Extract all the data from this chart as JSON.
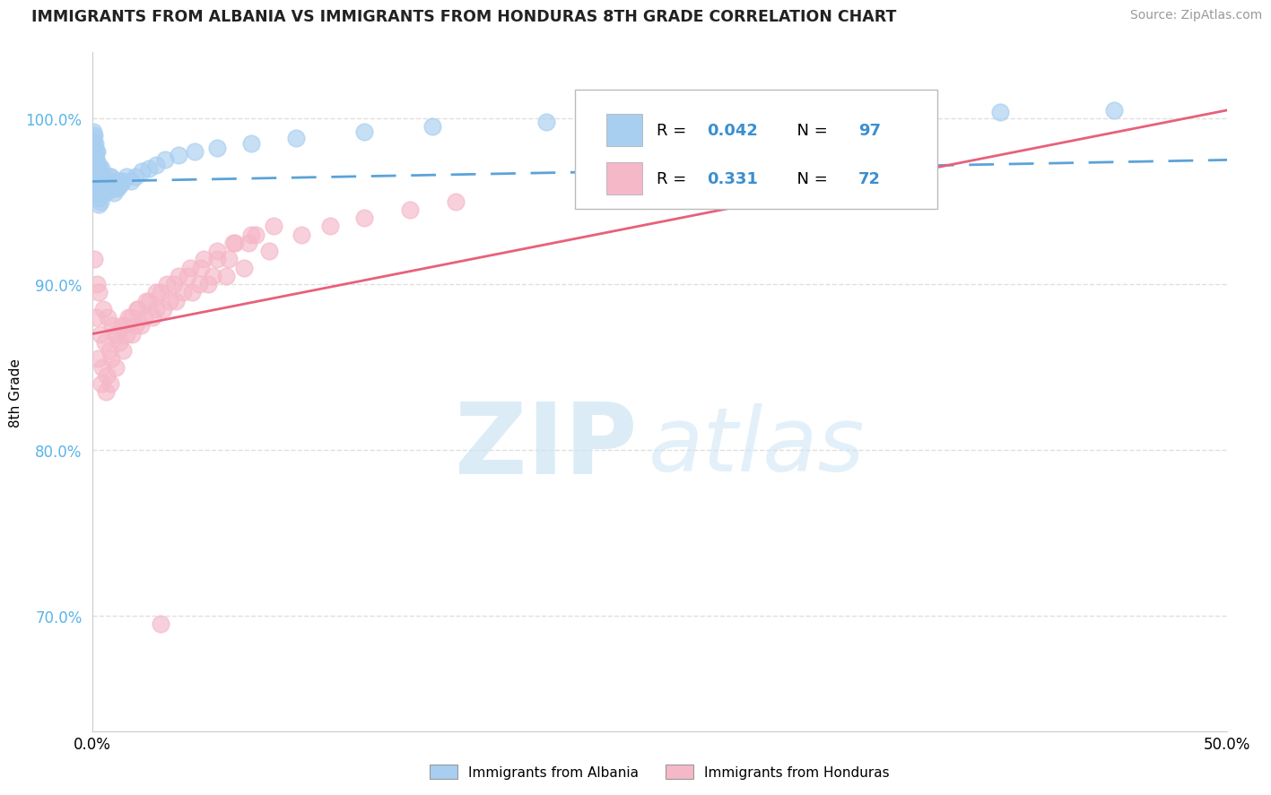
{
  "title": "IMMIGRANTS FROM ALBANIA VS IMMIGRANTS FROM HONDURAS 8TH GRADE CORRELATION CHART",
  "source": "Source: ZipAtlas.com",
  "ylabel": "8th Grade",
  "xlim": [
    0.0,
    50.0
  ],
  "ylim": [
    63.0,
    104.0
  ],
  "albania_color": "#a8cef0",
  "honduras_color": "#f5b8c8",
  "albania_line_color": "#5ba3d9",
  "honduras_line_color": "#e8607a",
  "albania_R": 0.042,
  "albania_N": 97,
  "honduras_R": 0.331,
  "honduras_N": 72,
  "legend_albania_label": "Immigrants from Albania",
  "legend_honduras_label": "Immigrants from Honduras",
  "watermark_zip": "ZIP",
  "watermark_atlas": "atlas",
  "background_color": "#ffffff",
  "grid_color": "#e0e0e0",
  "yticks": [
    70.0,
    80.0,
    90.0,
    100.0
  ],
  "xticks": [
    0.0,
    50.0
  ],
  "albania_scatter_x": [
    0.05,
    0.05,
    0.08,
    0.08,
    0.1,
    0.1,
    0.12,
    0.12,
    0.15,
    0.15,
    0.18,
    0.18,
    0.2,
    0.2,
    0.22,
    0.22,
    0.25,
    0.25,
    0.28,
    0.28,
    0.3,
    0.3,
    0.35,
    0.35,
    0.4,
    0.4,
    0.45,
    0.5,
    0.55,
    0.6,
    0.65,
    0.7,
    0.75,
    0.8,
    0.85,
    0.9,
    0.95,
    1.0,
    1.1,
    1.2,
    0.05,
    0.07,
    0.09,
    0.11,
    0.13,
    0.16,
    0.19,
    0.23,
    0.27,
    0.32,
    0.37,
    0.42,
    0.48,
    0.53,
    0.58,
    0.63,
    0.68,
    0.73,
    0.78,
    0.83,
    0.88,
    0.93,
    0.98,
    1.05,
    1.15,
    1.25,
    1.35,
    1.5,
    1.7,
    1.9,
    2.2,
    2.5,
    2.8,
    3.2,
    3.8,
    4.5,
    5.5,
    7.0,
    9.0,
    12.0,
    15.0,
    20.0,
    25.0,
    30.0,
    35.0,
    40.0,
    45.0,
    0.06,
    0.14,
    0.21,
    0.33,
    0.44,
    0.56,
    0.67,
    0.79,
    0.91,
    1.08
  ],
  "albania_scatter_y": [
    98.5,
    97.2,
    99.0,
    96.8,
    97.5,
    98.2,
    96.5,
    97.8,
    98.0,
    97.0,
    96.2,
    97.5,
    95.8,
    96.8,
    96.0,
    97.2,
    95.5,
    96.5,
    95.2,
    96.2,
    94.8,
    95.8,
    95.0,
    96.0,
    95.5,
    96.5,
    96.2,
    95.8,
    96.0,
    95.5,
    96.2,
    95.8,
    96.0,
    96.5,
    95.8,
    96.2,
    95.5,
    96.0,
    95.8,
    96.2,
    99.2,
    98.8,
    97.8,
    98.5,
    97.0,
    97.5,
    98.0,
    96.8,
    97.2,
    96.5,
    96.8,
    97.0,
    96.2,
    96.5,
    95.8,
    96.2,
    96.0,
    95.8,
    96.0,
    96.2,
    95.8,
    96.0,
    95.8,
    96.0,
    96.2,
    96.0,
    96.2,
    96.5,
    96.2,
    96.5,
    96.8,
    97.0,
    97.2,
    97.5,
    97.8,
    98.0,
    98.2,
    98.5,
    98.8,
    99.2,
    99.5,
    99.8,
    100.0,
    100.2,
    100.3,
    100.4,
    100.5,
    98.2,
    97.5,
    96.8,
    96.2,
    96.5,
    95.8,
    96.2,
    96.5,
    95.8,
    96.0
  ],
  "honduras_scatter_x": [
    0.1,
    0.2,
    0.3,
    0.5,
    0.7,
    0.9,
    1.1,
    1.4,
    1.7,
    2.0,
    2.4,
    2.8,
    3.3,
    3.8,
    4.3,
    4.9,
    5.5,
    6.2,
    7.0,
    8.0,
    0.15,
    0.35,
    0.55,
    0.75,
    1.0,
    1.3,
    1.6,
    2.0,
    2.5,
    3.0,
    3.6,
    4.2,
    4.8,
    5.5,
    6.3,
    7.2,
    0.25,
    0.45,
    0.65,
    0.85,
    1.2,
    1.5,
    1.9,
    2.3,
    2.8,
    3.4,
    4.0,
    4.7,
    5.3,
    6.0,
    6.9,
    0.4,
    0.6,
    0.8,
    1.05,
    1.35,
    1.75,
    2.15,
    2.65,
    3.15,
    3.7,
    4.4,
    5.1,
    5.9,
    6.7,
    7.8,
    9.2,
    10.5,
    12.0,
    14.0,
    16.0,
    3.0
  ],
  "honduras_scatter_y": [
    91.5,
    90.0,
    89.5,
    88.5,
    88.0,
    87.5,
    87.0,
    87.5,
    88.0,
    88.5,
    89.0,
    89.5,
    90.0,
    90.5,
    91.0,
    91.5,
    92.0,
    92.5,
    93.0,
    93.5,
    88.0,
    87.0,
    86.5,
    86.0,
    87.0,
    87.5,
    88.0,
    88.5,
    89.0,
    89.5,
    90.0,
    90.5,
    91.0,
    91.5,
    92.5,
    93.0,
    85.5,
    85.0,
    84.5,
    85.5,
    86.5,
    87.0,
    87.5,
    88.0,
    88.5,
    89.0,
    89.5,
    90.0,
    90.5,
    91.5,
    92.5,
    84.0,
    83.5,
    84.0,
    85.0,
    86.0,
    87.0,
    87.5,
    88.0,
    88.5,
    89.0,
    89.5,
    90.0,
    90.5,
    91.0,
    92.0,
    93.0,
    93.5,
    94.0,
    94.5,
    95.0,
    69.5
  ]
}
